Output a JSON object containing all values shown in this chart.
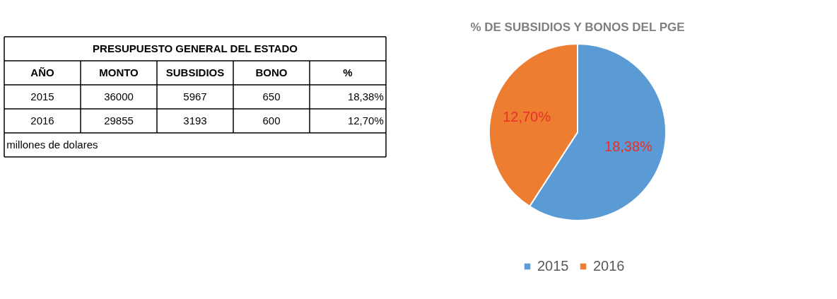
{
  "chart_data": [
    {
      "type": "other",
      "title": "PRESUPUESTO GENERAL DEL ESTADO",
      "categories": [
        "AÑO",
        "MONTO",
        "SUBSIDIOS",
        "BONO",
        "%"
      ],
      "cell_labels": [
        [
          "2015",
          "36000",
          "5967",
          "650",
          "18,38%"
        ],
        [
          "2016",
          "29855",
          "3193",
          "600",
          "12,70%"
        ]
      ],
      "annotations": [
        "millones de dolares"
      ]
    },
    {
      "type": "pie",
      "title": "% DE SUBSIDIOS Y BONOS  DEL PGE",
      "categories": [
        "2015",
        "2016"
      ],
      "values": [
        18.38,
        12.7
      ],
      "colors": [
        "#5b9bd5",
        "#ed7d31"
      ],
      "value_labels": [
        "18,38%",
        "12,70%"
      ],
      "legend": "bottom"
    }
  ]
}
